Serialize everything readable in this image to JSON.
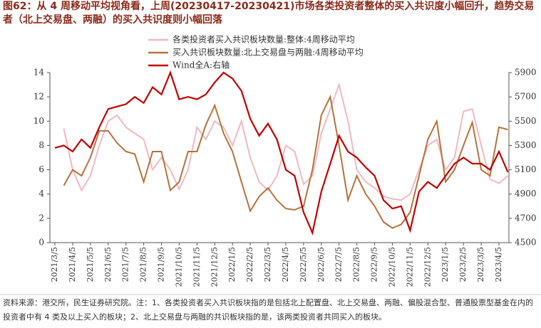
{
  "chart_data": {
    "type": "line",
    "title": "图62：从 4 周移动平均视角看，上周(20230417-20230421)市场各类投资者整体的买入共识度小幅回升，趋势交易者（北上交易盘、两融）的买入共识度则小幅回落",
    "note": "资料来源：港交所，民生证券研究院。注：1、各类投资者买入共识板块指的是包括北上配置盘、北上交易盘、两融、偏股混合型、普通股票型基金在内的投资者中有 4 类及以上买入的板块；2、北上交易盘与两融的共识板块指的是，该两类投资者共同买入的板块。",
    "categories": [
      "2021/3/5",
      null,
      "2021/4/5",
      null,
      "2021/5/5",
      null,
      "2021/6/5",
      null,
      "2021/7/5",
      null,
      "2021/8/5",
      null,
      "2021/9/5",
      null,
      "2021/10/5",
      null,
      "2021/11/5",
      null,
      "2021/12/5",
      null,
      "2022/1/5",
      null,
      "2022/2/5",
      null,
      "2022/3/5",
      null,
      "2022/4/5",
      null,
      "2022/5/5",
      null,
      "2022/6/5",
      null,
      "2022/7/5",
      null,
      "2022/8/5",
      null,
      "2022/9/5",
      null,
      "2022/10/5",
      null,
      "2022/11/5",
      null,
      "2022/12/5",
      null,
      "2023/1/5",
      null,
      "2023/2/5",
      null,
      "2023/3/5",
      null,
      "2023/4/5",
      null
    ],
    "series": [
      {
        "name": "各类投资者买入共识板块数量:整体:4周移动平均",
        "color": "#f2b8c0",
        "values": [
          null,
          9.4,
          6,
          4.3,
          5.5,
          8,
          10,
          10.5,
          9.5,
          9,
          8.5,
          6,
          7,
          6,
          4.4,
          6,
          9.5,
          8.5,
          10,
          9.5,
          8,
          10,
          7,
          5,
          4.3,
          5.5,
          8,
          7.5,
          4.8,
          5.5,
          9,
          11,
          13,
          10,
          6,
          5,
          4.5,
          3.8,
          3.6,
          3.5,
          4,
          6,
          8,
          8.5,
          6,
          7,
          10.8,
          11,
          8,
          5.2,
          4.9,
          5.5
        ]
      },
      {
        "name": "买入共识板块数量:北上交易盘与两融:4周移动平均",
        "color": "#b5733c",
        "values": [
          null,
          4.7,
          6,
          5.5,
          7,
          9.2,
          9.2,
          8.2,
          7.5,
          7.3,
          5,
          7.5,
          7.5,
          4.3,
          5,
          7.5,
          7.5,
          9.7,
          11.3,
          9,
          7.5,
          5,
          2.6,
          3.8,
          4.5,
          3.5,
          2.8,
          2.7,
          3,
          6,
          10.5,
          12,
          8,
          3.5,
          5.5,
          4,
          3,
          1.7,
          1.2,
          1.5,
          2.5,
          5.5,
          8.5,
          10,
          5,
          6,
          8,
          9.9,
          6,
          5.5,
          9.5,
          9.3
        ]
      },
      {
        "name": "Wind全A:右轴",
        "color": "#c00000",
        "axis": "y2",
        "values": [
          5280,
          5300,
          5250,
          5350,
          5280,
          5450,
          5600,
          5620,
          5640,
          5700,
          5650,
          5780,
          5720,
          5900,
          5680,
          5700,
          5680,
          5720,
          5820,
          5900,
          5850,
          5750,
          5520,
          5380,
          5480,
          5350,
          5100,
          5050,
          4750,
          4580,
          4920,
          5150,
          5380,
          5250,
          5200,
          5120,
          5050,
          4850,
          4780,
          4800,
          4600,
          4920,
          5000,
          4950,
          5050,
          5150,
          5200,
          5150,
          5150,
          5100,
          5250,
          5080
        ]
      }
    ],
    "ylim": [
      0,
      14
    ],
    "yticks": [
      0,
      2,
      4,
      6,
      8,
      10,
      12,
      14
    ],
    "y2lim": [
      4500,
      5900
    ],
    "y2ticks": [
      4500,
      4700,
      4900,
      5100,
      5300,
      5500,
      5700,
      5900
    ],
    "legend": "top-left"
  }
}
